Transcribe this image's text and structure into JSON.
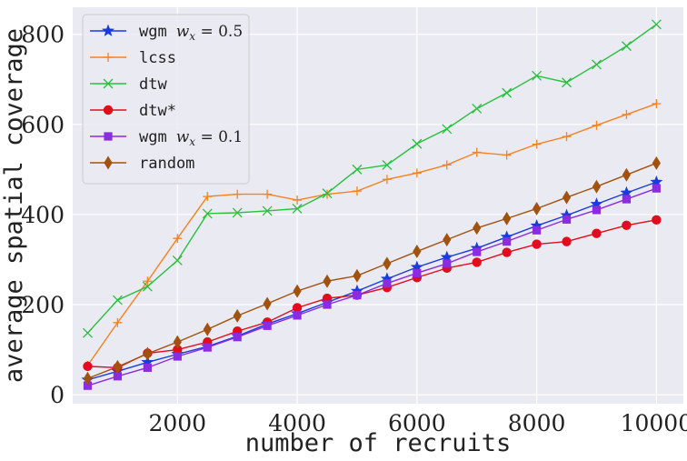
{
  "chart_data": {
    "type": "line",
    "xlabel": "number of recruits",
    "ylabel": "average spatial coverage",
    "xlim": [
      250,
      10450
    ],
    "ylim": [
      -20,
      860
    ],
    "xticks": [
      2000,
      4000,
      6000,
      8000,
      10000
    ],
    "yticks": [
      0,
      200,
      400,
      600,
      800
    ],
    "grid": true,
    "legend_position": "top-left",
    "x": [
      500,
      1000,
      1500,
      2000,
      2500,
      3000,
      3500,
      4000,
      4500,
      5000,
      5500,
      6000,
      6500,
      7000,
      7500,
      8000,
      8500,
      9000,
      9500,
      10000
    ],
    "series": [
      {
        "name": "wgm  w_x = 0.5",
        "legend_code": "wgm",
        "legend_math": "w",
        "legend_sub": "x",
        "legend_rest": " = 0.5",
        "color": "#1a3bdc",
        "marker": "star",
        "values": [
          33,
          52,
          72,
          90,
          107,
          130,
          157,
          180,
          205,
          230,
          257,
          283,
          305,
          325,
          350,
          375,
          398,
          423,
          448,
          472
        ]
      },
      {
        "name": "lcss",
        "legend_code": "lcss",
        "color": "#f5821f",
        "marker": "plus",
        "values": [
          65,
          160,
          252,
          347,
          440,
          445,
          445,
          432,
          445,
          452,
          478,
          492,
          510,
          538,
          532,
          556,
          573,
          598,
          622,
          646
        ]
      },
      {
        "name": "dtw",
        "legend_code": "dtw",
        "color": "#27c13d",
        "marker": "x",
        "values": [
          137,
          210,
          240,
          298,
          402,
          404,
          408,
          413,
          447,
          500,
          510,
          557,
          590,
          635,
          670,
          708,
          693,
          733,
          774,
          822
        ]
      },
      {
        "name": "dtw*",
        "legend_code": "dtw*",
        "color": "#e10d1c",
        "marker": "circle",
        "values": [
          63,
          60,
          92,
          100,
          117,
          141,
          161,
          193,
          214,
          221,
          238,
          260,
          281,
          294,
          316,
          334,
          340,
          358,
          376,
          388
        ]
      },
      {
        "name": "wgm  w_x = 0.1",
        "legend_code": "wgm",
        "legend_math": "w",
        "legend_sub": "x",
        "legend_rest": " = 0.1",
        "color": "#8b2be2",
        "marker": "square",
        "values": [
          20,
          41,
          60,
          85,
          105,
          128,
          153,
          176,
          200,
          221,
          247,
          270,
          291,
          317,
          340,
          365,
          389,
          410,
          434,
          458
        ]
      },
      {
        "name": "random",
        "legend_code": "random",
        "color": "#a0520e",
        "marker": "diamond",
        "values": [
          36,
          62,
          91,
          117,
          145,
          175,
          202,
          230,
          252,
          264,
          291,
          318,
          344,
          370,
          391,
          413,
          438,
          462,
          488,
          514
        ]
      }
    ]
  }
}
